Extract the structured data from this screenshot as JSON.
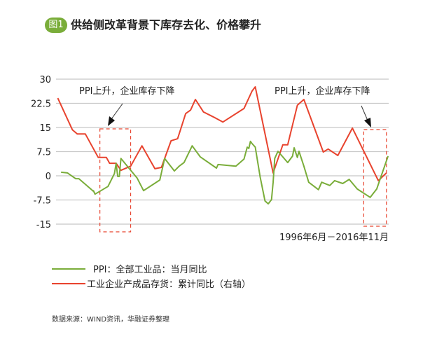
{
  "header": {
    "badge": "图1",
    "title": "供给侧改革背景下库存去化、价格攀升"
  },
  "source": "数据来源：WIND资讯，华融证券整理",
  "chart_data": {
    "type": "line",
    "title": "供给侧改革背景下库存去化、价格攀升",
    "date_range_label": "1996年6月－2016年11月",
    "x_unit": "decimal year",
    "ylim": [
      -15,
      30
    ],
    "y_ticks": [
      "30",
      "22.5",
      "15",
      "7.5",
      "0",
      "-7.5",
      "-15"
    ],
    "y_tick_values": [
      30,
      22.5,
      15,
      7.5,
      0,
      -7.5,
      -15
    ],
    "grid": true,
    "legend_position": "bottom-left",
    "annotations": [
      {
        "text": "PPI上升，企业库存下降",
        "x_range": [
          1999.0,
          2000.9
        ]
      },
      {
        "text": "PPI上升，企业库存下降",
        "x_range": [
          2015.3,
          2016.7
        ]
      }
    ],
    "series": [
      {
        "name": "PPI：全部工业品：当月同比",
        "color": "#7aad3a",
        "x": [
          1996.6,
          1997.0,
          1997.5,
          1997.7,
          1998.6,
          1998.6,
          1998.7,
          1999.5,
          1999.9,
          2000.0,
          2000.1,
          2000.2,
          2000.3,
          2001.3,
          2001.7,
          2002.7,
          2003.0,
          2003.6,
          2003.9,
          2004.2,
          2004.7,
          2005.2,
          2006.2,
          2006.3,
          2007.4,
          2007.9,
          2008.1,
          2008.2,
          2008.3,
          2008.4,
          2008.6,
          2008.9,
          2009.2,
          2009.4,
          2009.6,
          2009.7,
          2009.8,
          2010.0,
          2010.6,
          2010.9,
          2011.0,
          2011.2,
          2011.3,
          2011.6,
          2011.9,
          2012.5,
          2012.7,
          2013.2,
          2013.5,
          2014.0,
          2014.4,
          2014.9,
          2015.7,
          2016.1,
          2016.8
        ],
        "values": [
          1.1,
          0.9,
          -0.9,
          -0.9,
          -4.8,
          -4.6,
          -5.7,
          -3.3,
          0.7,
          3.9,
          -0.2,
          -0.2,
          5.4,
          -0.7,
          -4.6,
          -1.3,
          5.4,
          1.5,
          3.0,
          4.1,
          9.3,
          5.9,
          2.4,
          3.5,
          3.0,
          5.2,
          8.9,
          8.5,
          10.7,
          10.0,
          8.9,
          -0.4,
          -7.8,
          -8.7,
          -7.4,
          -2.0,
          5.4,
          7.6,
          4.1,
          6.1,
          8.7,
          5.7,
          7.6,
          3.0,
          -2.0,
          -4.3,
          -2.0,
          -3.0,
          -1.5,
          -2.4,
          -1.1,
          -4.1,
          -6.7,
          -4.1,
          6.1
        ]
      },
      {
        "name": "工业企业产成品存货：累计同比（右轴）",
        "color": "#e8432e",
        "x": [
          1996.4,
          1997.3,
          1997.6,
          1997.9,
          1998.1,
          1998.9,
          1999.4,
          1999.6,
          2000.0,
          2000.3,
          2000.9,
          2001.6,
          2002.4,
          2002.8,
          2003.4,
          2003.8,
          2004.3,
          2004.6,
          2004.9,
          2005.4,
          2006.0,
          2006.6,
          2007.9,
          2008.4,
          2008.6,
          2009.7,
          2010.3,
          2010.6,
          2011.2,
          2011.6,
          2012.8,
          2013.1,
          2013.7,
          2014.6,
          2016.2,
          2016.7
        ],
        "values": [
          24.1,
          14.3,
          13.0,
          13.0,
          13.0,
          5.7,
          5.7,
          3.9,
          3.9,
          1.7,
          3.0,
          9.3,
          2.2,
          2.6,
          10.9,
          11.5,
          19.3,
          20.4,
          23.7,
          19.8,
          18.3,
          16.7,
          20.9,
          26.3,
          27.6,
          0.9,
          9.6,
          9.6,
          21.9,
          23.7,
          7.4,
          8.3,
          6.3,
          14.8,
          -1.5,
          0.9
        ]
      }
    ]
  }
}
